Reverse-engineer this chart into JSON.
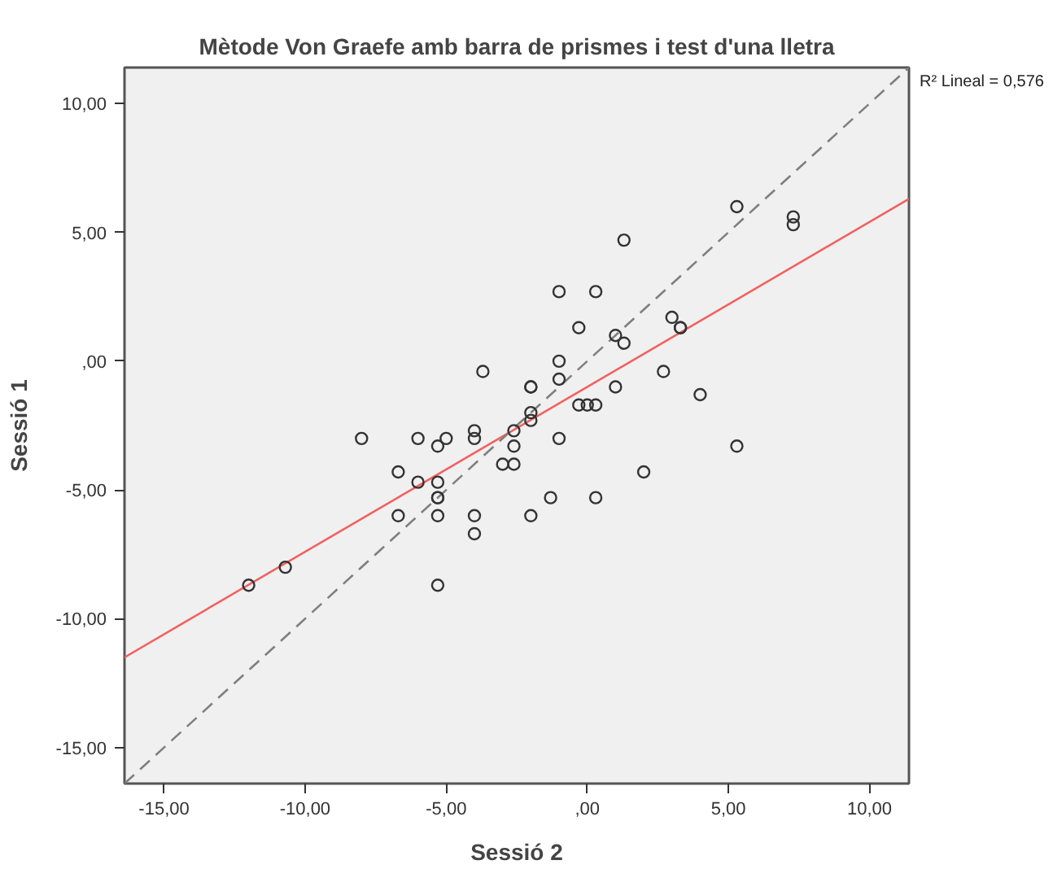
{
  "chart_data": {
    "type": "scatter",
    "title": "Mètode Von Graefe amb barra de prismes i test d'una lletra",
    "xlabel": "Sessió 2",
    "ylabel": "Sessió 1",
    "xlim": [
      -16.4,
      11.4
    ],
    "ylim": [
      -16.4,
      11.4
    ],
    "xticks": [
      {
        "value": -15,
        "label": "-15,00"
      },
      {
        "value": -10,
        "label": "-10,00"
      },
      {
        "value": -5,
        "label": "-5,00"
      },
      {
        "value": 0,
        "label": ",00"
      },
      {
        "value": 5,
        "label": "5,00"
      },
      {
        "value": 10,
        "label": "10,00"
      }
    ],
    "yticks": [
      {
        "value": -15,
        "label": "-15,00"
      },
      {
        "value": -10,
        "label": "-10,00"
      },
      {
        "value": -5,
        "label": "-5,00"
      },
      {
        "value": 0,
        "label": ",00"
      },
      {
        "value": 5,
        "label": "5,00"
      },
      {
        "value": 10,
        "label": "10,00"
      }
    ],
    "grid": false,
    "annotations": [
      "R² Lineal = 0,576"
    ],
    "series": [
      {
        "marker": "circle",
        "color": "#333333",
        "x": [
          -12.0,
          -10.7,
          -8.0,
          -6.7,
          -6.0,
          -6.0,
          -5.3,
          -5.3,
          -5.3,
          -5.3,
          -5.3,
          -5.0,
          -5.3,
          -6.7,
          -4.0,
          -4.0,
          -4.0,
          -4.0,
          -3.7,
          -3.0,
          -2.6,
          -2.6,
          -2.6,
          -2.0,
          -2.0,
          -2.0,
          -2.0,
          -2.0,
          -1.3,
          -1.0,
          -1.0,
          -0.3,
          0.0,
          0.3,
          0.3,
          1.0,
          2.0,
          2.7,
          4.0,
          5.3,
          5.3,
          7.3,
          7.3,
          1.3,
          -1.0,
          0.3,
          -0.3,
          1.0,
          1.3,
          3.0,
          3.3,
          3.3,
          -1.0
        ],
        "values": [
          -8.7,
          -8.0,
          -3.0,
          -4.3,
          -3.0,
          -4.7,
          -3.3,
          -4.7,
          -5.3,
          -5.3,
          -6.0,
          -3.0,
          -8.7,
          -6.0,
          -2.7,
          -3.0,
          -6.0,
          -6.7,
          -0.4,
          -4.0,
          -4.0,
          -2.7,
          -3.3,
          -1.0,
          -1.0,
          -2.0,
          -2.3,
          -6.0,
          -5.3,
          -0.7,
          -3.0,
          -1.7,
          -1.7,
          -1.7,
          -5.3,
          -1.0,
          -4.3,
          -0.4,
          -1.3,
          -3.3,
          6.0,
          5.6,
          5.3,
          4.7,
          2.7,
          2.7,
          1.3,
          1.0,
          0.7,
          1.7,
          1.3,
          1.3,
          0.0
        ]
      },
      {
        "type": "line",
        "color": "#f26161",
        "line_style": "solid",
        "x": [
          -16.4,
          11.4
        ],
        "values": [
          -11.5,
          6.3
        ]
      },
      {
        "type": "line",
        "color": "#7f7f7f",
        "line_style": "dashed",
        "x": [
          -16.4,
          11.4
        ],
        "values": [
          -16.4,
          11.4
        ]
      }
    ]
  }
}
